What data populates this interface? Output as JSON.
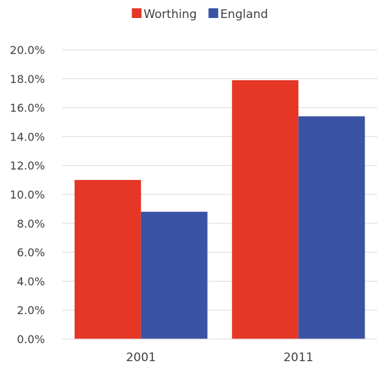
{
  "chart_data": {
    "type": "bar",
    "categories": [
      "2001",
      "2011"
    ],
    "series": [
      {
        "name": "Worthing",
        "values": [
          11.0,
          17.9
        ],
        "color": "#E53626"
      },
      {
        "name": "England",
        "values": [
          8.8,
          15.4
        ],
        "color": "#3A53A4"
      }
    ],
    "ylim": [
      0,
      20
    ],
    "yticks": [
      "0.0%",
      "2.0%",
      "4.0%",
      "6.0%",
      "8.0%",
      "10.0%",
      "12.0%",
      "14.0%",
      "16.0%",
      "18.0%",
      "20.0%"
    ],
    "ytick_values": [
      0,
      2,
      4,
      6,
      8,
      10,
      12,
      14,
      16,
      18,
      20
    ],
    "grid": true,
    "legend_position": "top"
  }
}
